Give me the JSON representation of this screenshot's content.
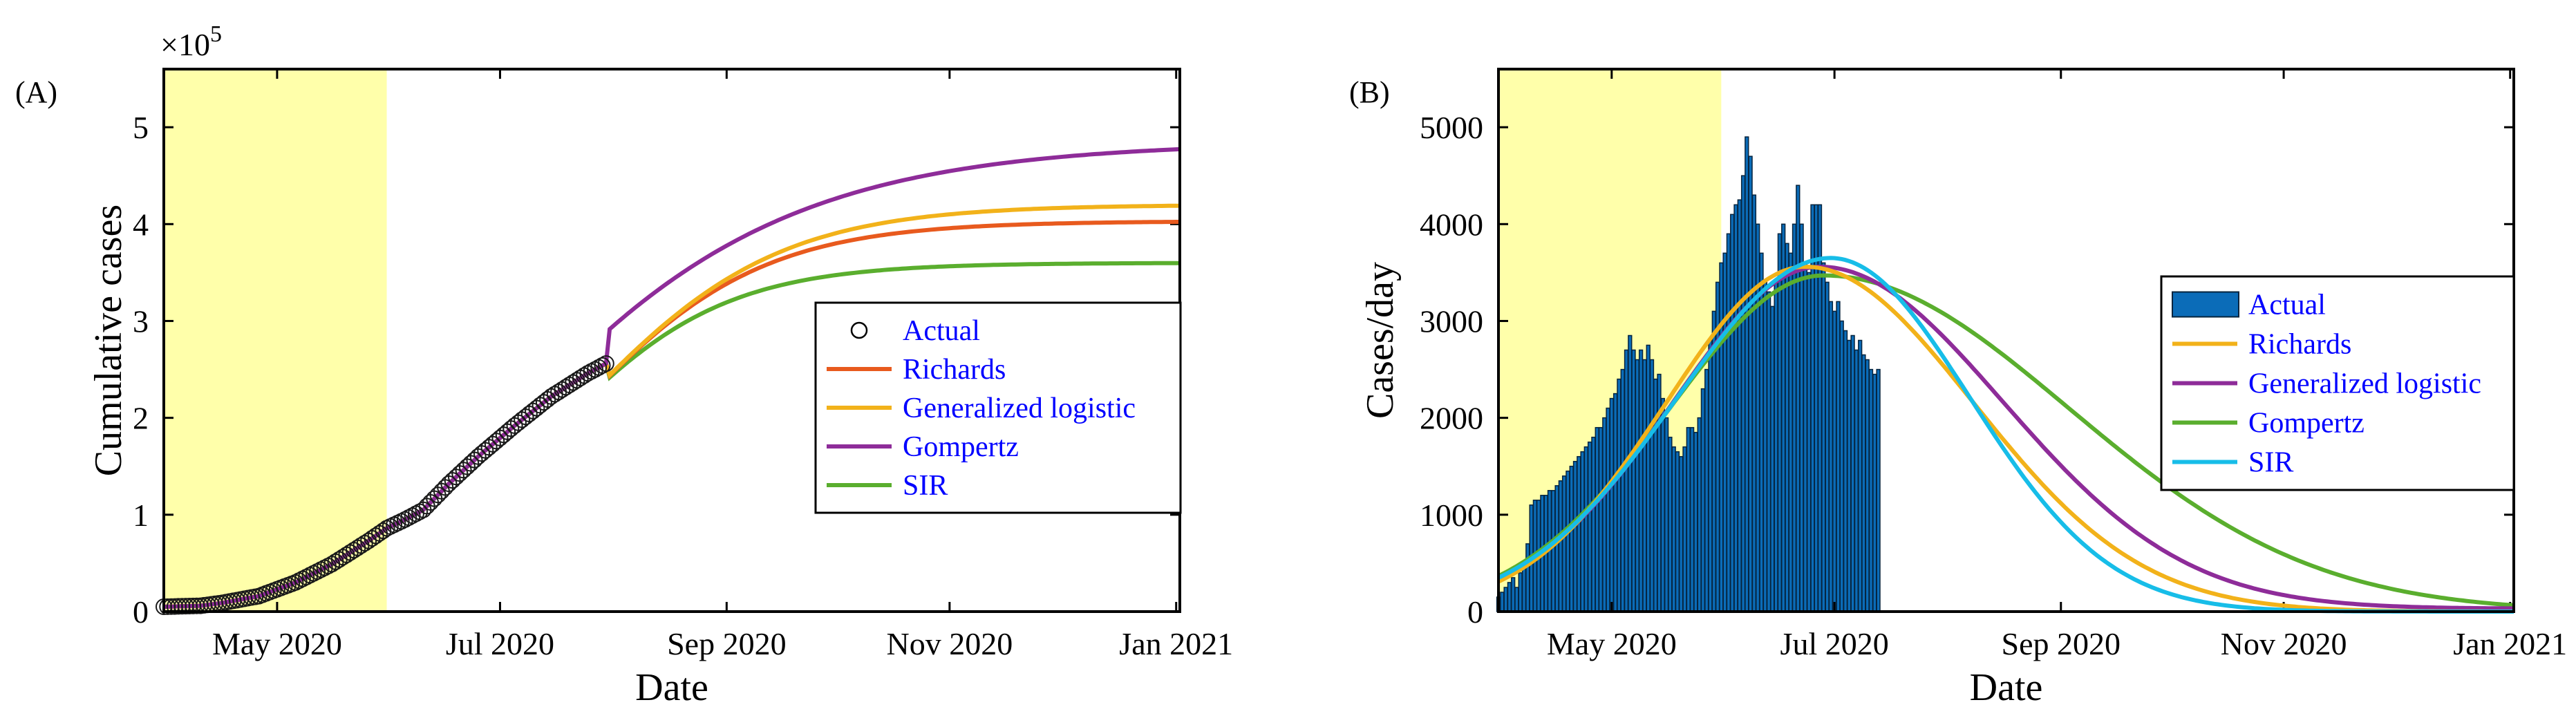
{
  "chart_data": [
    {
      "type": "line",
      "panel_label": "(A)",
      "xlabel": "Date",
      "ylabel": "Cumulative cases",
      "y_exponent_label": "×10",
      "y_exponent_power": "5",
      "xlim_day": [
        -16,
        262
      ],
      "ylim": [
        0,
        5.6
      ],
      "x_ticks": [
        {
          "day": 15,
          "label": "May 2020"
        },
        {
          "day": 76,
          "label": "Jul 2020"
        },
        {
          "day": 138,
          "label": "Sep 2020"
        },
        {
          "day": 199,
          "label": "Nov 2020"
        },
        {
          "day": 261,
          "label": "Jan 2021"
        }
      ],
      "y_ticks": [
        {
          "value": 0,
          "label": "0"
        },
        {
          "value": 1,
          "label": "1"
        },
        {
          "value": 2,
          "label": "2"
        },
        {
          "value": 3,
          "label": "3"
        },
        {
          "value": 4,
          "label": "4"
        },
        {
          "value": 5,
          "label": "5"
        }
      ],
      "shaded_region_day": [
        -16,
        45
      ],
      "shade_color": "#ffffaa",
      "legend_position": "east",
      "x_day_origin": "2020-04-16",
      "actual": {
        "name": "Actual",
        "day_start": -16,
        "day_end": 105,
        "knots_day": [
          -16,
          -6,
          0,
          10,
          20,
          30,
          40,
          45,
          50,
          55,
          62,
          70,
          80,
          90,
          100,
          105
        ],
        "knots_value": [
          0.05,
          0.06,
          0.09,
          0.16,
          0.3,
          0.49,
          0.73,
          0.86,
          0.95,
          1.05,
          1.32,
          1.6,
          1.92,
          2.22,
          2.46,
          2.56
        ]
      },
      "series": [
        {
          "name": "Richards",
          "color": "#e85a1e",
          "kind": "logistic",
          "K": 4.03,
          "r": 0.0385,
          "t0": 95
        },
        {
          "name": "Generalized logistic",
          "color": "#f2b21a",
          "kind": "logistic",
          "K": 4.2,
          "r": 0.0365,
          "t0": 97
        },
        {
          "name": "Gompertz",
          "color": "#8e2c99",
          "kind": "gompertz",
          "K": 4.85,
          "b": 5.35,
          "c": 0.0222
        },
        {
          "name": "SIR",
          "color": "#5aae2e",
          "kind": "logistic",
          "K": 3.6,
          "r": 0.042,
          "t0": 89
        }
      ],
      "legend": [
        "Actual",
        "Richards",
        "Generalized logistic",
        "Gompertz",
        "SIR"
      ]
    },
    {
      "type": "bar+line",
      "panel_label": "(B)",
      "xlabel": "Date",
      "ylabel": "Cases/day",
      "xlim_day": [
        -16,
        262
      ],
      "ylim": [
        0,
        5600
      ],
      "x_ticks": [
        {
          "day": 15,
          "label": "May 2020"
        },
        {
          "day": 76,
          "label": "Jul 2020"
        },
        {
          "day": 138,
          "label": "Sep 2020"
        },
        {
          "day": 199,
          "label": "Nov 2020"
        },
        {
          "day": 261,
          "label": "Jan 2021"
        }
      ],
      "y_ticks": [
        {
          "value": 0,
          "label": "0"
        },
        {
          "value": 1000,
          "label": "1000"
        },
        {
          "value": 2000,
          "label": "2000"
        },
        {
          "value": 3000,
          "label": "3000"
        },
        {
          "value": 4000,
          "label": "4000"
        },
        {
          "value": 5000,
          "label": "5000"
        }
      ],
      "shaded_region_day": [
        -16,
        45
      ],
      "shade_color": "#ffffaa",
      "legend_position": "east",
      "bars": {
        "name": "Actual",
        "color": "#0b6cb8",
        "edge_color": "#06243e",
        "day_start": -16,
        "values": [
          150,
          200,
          250,
          300,
          350,
          250,
          400,
          500,
          700,
          1100,
          1150,
          1150,
          1200,
          1200,
          1250,
          1250,
          1300,
          1350,
          1400,
          1450,
          1500,
          1550,
          1600,
          1650,
          1700,
          1750,
          1800,
          1900,
          1900,
          2000,
          2100,
          2200,
          2250,
          2400,
          2500,
          2700,
          2850,
          2700,
          2600,
          2700,
          2600,
          2750,
          2600,
          2400,
          2450,
          2200,
          2000,
          1800,
          1700,
          1650,
          1600,
          1700,
          1900,
          1900,
          1850,
          2000,
          2300,
          2500,
          2800,
          3100,
          3400,
          3600,
          3700,
          3900,
          4100,
          4200,
          4250,
          4500,
          4900,
          4700,
          4300,
          4000,
          3700,
          3400,
          3300,
          3150,
          3400,
          3900,
          4000,
          3800,
          3700,
          4000,
          4400,
          4000,
          3600,
          3500,
          4200,
          4200,
          4200,
          3600,
          3400,
          3200,
          3100,
          3200,
          3000,
          2900,
          2800,
          2850,
          2700,
          2800,
          2650,
          2600,
          2500,
          2450,
          2500
        ]
      },
      "series": [
        {
          "name": "Richards",
          "color": "#f2b21a",
          "peak": 3560,
          "peak_day": 68,
          "sigma_left": 38,
          "sigma_right": 46,
          "floor": 0
        },
        {
          "name": "Generalized logistic",
          "color": "#8e2c99",
          "peak": 3560,
          "peak_day": 72,
          "sigma_left": 40,
          "sigma_right": 50,
          "floor": 30
        },
        {
          "name": "Gompertz",
          "color": "#5aae2e",
          "peak": 3470,
          "peak_day": 73,
          "sigma_left": 42,
          "sigma_right": 67,
          "floor": 0
        },
        {
          "name": "SIR",
          "color": "#17bde8",
          "peak": 3650,
          "peak_day": 75,
          "sigma_left": 42,
          "sigma_right": 38,
          "floor": 0
        }
      ],
      "legend": [
        "Actual",
        "Richards",
        "Generalized logistic",
        "Gompertz",
        "SIR"
      ]
    }
  ]
}
